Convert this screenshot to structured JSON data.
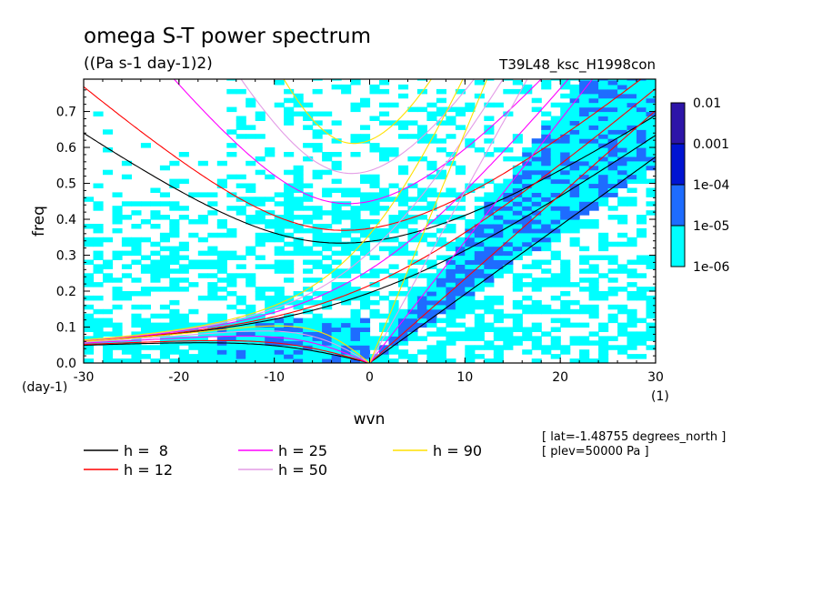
{
  "chart_data": {
    "type": "heatmap",
    "title": "omega S-T power spectrum",
    "subtitle": "((Pa s-1 day-1)2)",
    "run_label": "T39L48_ksc_H1998con",
    "xlabel": "wvn",
    "ylabel": "freq",
    "x_unit": "(1)",
    "y_unit": "(day-1)",
    "xlim": [
      -30,
      30
    ],
    "ylim": [
      0,
      0.79
    ],
    "x_ticks": [
      -30,
      -20,
      -10,
      0,
      10,
      20,
      30
    ],
    "x_tick_labels": [
      "-30",
      "-20",
      "-10",
      "0",
      "10",
      "20",
      "30"
    ],
    "y_ticks": [
      0,
      0.1,
      0.2,
      0.3,
      0.4,
      0.5,
      0.6,
      0.7
    ],
    "y_tick_labels": [
      "0.0",
      "0.1",
      "0.2",
      "0.3",
      "0.4",
      "0.5",
      "0.6",
      "0.7"
    ],
    "colorbar": {
      "levels": [
        "1e-06",
        "1e-05",
        "1e-04",
        "0.001",
        "0.01"
      ],
      "colors": [
        "#00ffff",
        "#1e6cff",
        "#0014d2",
        "#2d15a8"
      ]
    },
    "dispersion_curves": [
      {
        "name": "h =  8",
        "h": 8,
        "color": "#000000"
      },
      {
        "name": "h = 12",
        "h": 12,
        "color": "#ff0000"
      },
      {
        "name": "h = 25",
        "h": 25,
        "color": "#ff00ff"
      },
      {
        "name": "h = 50",
        "h": 50,
        "color": "#e39ce6"
      },
      {
        "name": "h = 90",
        "h": 90,
        "color": "#ffe000"
      }
    ],
    "annotations": [
      "[ lat=-1.48755 degrees_north ]",
      "[ plev=50000 Pa ]"
    ]
  }
}
